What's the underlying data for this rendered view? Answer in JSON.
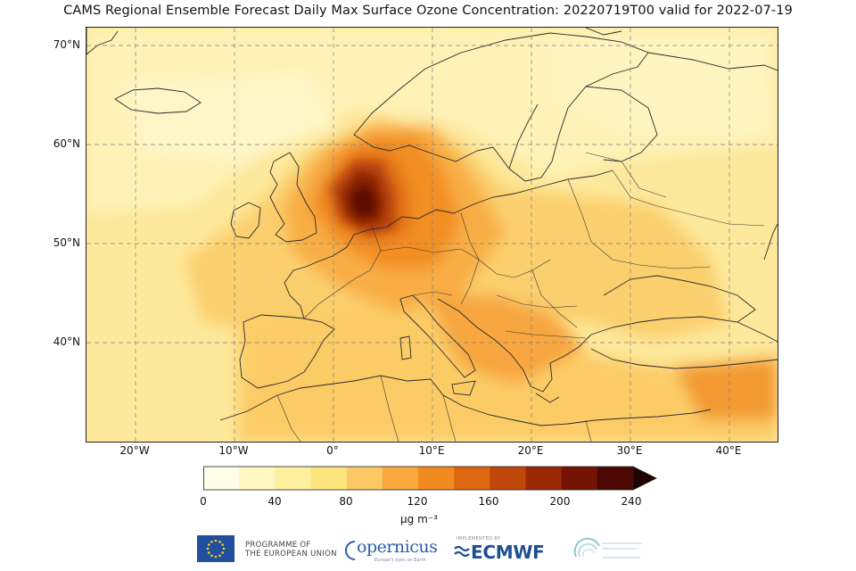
{
  "title": "CAMS Regional Ensemble Forecast Daily Max Surface Ozone Concentration: 20220719T00 valid for 2022-07-19",
  "map": {
    "lat_labels": [
      "70°N",
      "60°N",
      "50°N",
      "40°N"
    ],
    "lon_labels": [
      "20°W",
      "10°W",
      "0°",
      "10°E",
      "20°E",
      "30°E",
      "40°E"
    ],
    "extent": {
      "lon_min": -25,
      "lon_max": 45,
      "lat_min": 30,
      "lat_max": 72
    },
    "gridlines": true,
    "variable": "Daily Max Surface Ozone Concentration",
    "peak_region": "southern North Sea / Benelux"
  },
  "colorbar": {
    "ticks": [
      "0",
      "40",
      "80",
      "120",
      "160",
      "200",
      "240"
    ],
    "units": "µg m⁻³",
    "bounds": [
      0,
      20,
      40,
      60,
      80,
      100,
      120,
      140,
      160,
      180,
      200,
      220,
      240
    ],
    "colors": [
      "#fffde9",
      "#fff7c2",
      "#fff09f",
      "#fde57d",
      "#fbc864",
      "#f8a83d",
      "#f18a1f",
      "#de6812",
      "#c0470a",
      "#9a2805",
      "#741203",
      "#4c0702"
    ],
    "extend": "max",
    "extend_color": "#1f0201"
  },
  "logos": {
    "eu_line1": "PROGRAMME OF",
    "eu_line2": "THE EUROPEAN UNION",
    "copernicus": "opernicus",
    "copernicus_sub": "Europe's eyes on Earth",
    "ecmwf_pre": "IMPLEMENTED BY",
    "ecmwf": "ECMWF"
  }
}
